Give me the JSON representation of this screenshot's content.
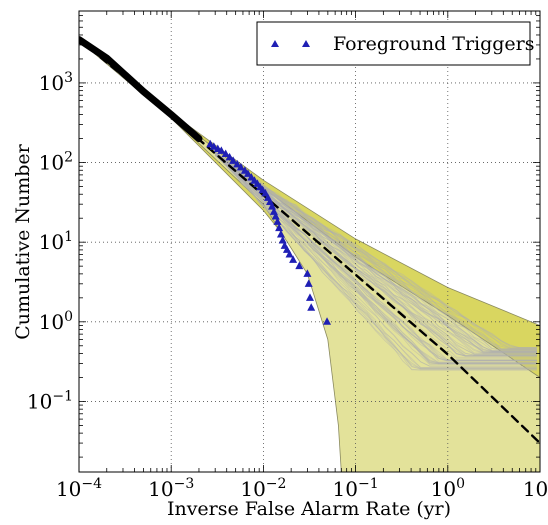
{
  "chart_data": {
    "type": "scatter",
    "xlabel": "Inverse False Alarm Rate (yr)",
    "ylabel": "Cumulative Number",
    "xscale": "log",
    "yscale": "log",
    "xlim": [
      0.0001,
      10
    ],
    "ylim": [
      0.013,
      8000
    ],
    "grid": true,
    "legend_position": "top-right",
    "x_ticks": [
      {
        "value": 0.0001,
        "mantissa": "10",
        "exp": "−4"
      },
      {
        "value": 0.001,
        "mantissa": "10",
        "exp": "−3"
      },
      {
        "value": 0.01,
        "mantissa": "10",
        "exp": "−2"
      },
      {
        "value": 0.1,
        "mantissa": "10",
        "exp": "−1"
      },
      {
        "value": 1,
        "mantissa": "10",
        "exp": "0"
      },
      {
        "value": 10,
        "mantissa": "10",
        "exp": "1"
      }
    ],
    "y_ticks": [
      {
        "value": 0.1,
        "mantissa": "10",
        "exp": "−1"
      },
      {
        "value": 1,
        "mantissa": "10",
        "exp": "0"
      },
      {
        "value": 10,
        "mantissa": "10",
        "exp": "1"
      },
      {
        "value": 100,
        "mantissa": "10",
        "exp": "2"
      },
      {
        "value": 1000,
        "mantissa": "10",
        "exp": "3"
      }
    ],
    "series": [
      {
        "name": "Foreground Triggers",
        "marker": "triangle",
        "color": "#1f1fb4",
        "points": [
          [
            0.00265,
            170
          ],
          [
            0.0029,
            158
          ],
          [
            0.0032,
            148
          ],
          [
            0.0035,
            140
          ],
          [
            0.0039,
            128
          ],
          [
            0.0043,
            116
          ],
          [
            0.0047,
            105
          ],
          [
            0.0052,
            95
          ],
          [
            0.0057,
            87
          ],
          [
            0.0063,
            79
          ],
          [
            0.0068,
            72
          ],
          [
            0.0074,
            65
          ],
          [
            0.008,
            59
          ],
          [
            0.0086,
            54
          ],
          [
            0.0092,
            49
          ],
          [
            0.0098,
            45
          ],
          [
            0.0105,
            41
          ],
          [
            0.0112,
            36
          ],
          [
            0.0118,
            32
          ],
          [
            0.0124,
            28
          ],
          [
            0.013,
            24
          ],
          [
            0.0136,
            21
          ],
          [
            0.0142,
            18
          ],
          [
            0.0148,
            15
          ],
          [
            0.0155,
            12.5
          ],
          [
            0.0162,
            10.5
          ],
          [
            0.017,
            9
          ],
          [
            0.018,
            8
          ],
          [
            0.0192,
            7
          ],
          [
            0.021,
            6
          ],
          [
            0.0245,
            5
          ],
          [
            0.03,
            4
          ],
          [
            0.031,
            3
          ],
          [
            0.032,
            2
          ],
          [
            0.033,
            1.5
          ],
          [
            0.049,
            1
          ]
        ]
      },
      {
        "name": "",
        "color": "#000000",
        "line_style": "solid",
        "points": [
          [
            0.0001,
            3500
          ],
          [
            0.0002,
            2050
          ],
          [
            0.0005,
            780
          ],
          [
            0.001,
            400
          ],
          [
            0.002,
            200
          ]
        ]
      },
      {
        "name": "",
        "color": "#000000",
        "line_style": "dashed",
        "points": [
          [
            0.0001,
            3500
          ],
          [
            0.001,
            390
          ],
          [
            0.01,
            39
          ],
          [
            0.1,
            3.9
          ],
          [
            1,
            0.39
          ],
          [
            10,
            0.03
          ]
        ]
      }
    ],
    "bands": [
      {
        "color": "#d4d04a",
        "opacity": 0.88,
        "upper": [
          [
            0.0001,
            3600
          ],
          [
            0.001,
            420
          ],
          [
            0.01,
            60
          ],
          [
            0.1,
            11
          ],
          [
            1,
            2.7
          ],
          [
            10,
            0.9
          ]
        ],
        "lower": [
          [
            0.0001,
            3400
          ],
          [
            0.001,
            360
          ],
          [
            0.01,
            25
          ],
          [
            0.05,
            2.5
          ],
          [
            0.1,
            1.2
          ],
          [
            0.2,
            0.18
          ],
          [
            0.3,
            0.013
          ],
          [
            10,
            0.013
          ]
        ]
      },
      {
        "color": "#e3e29a",
        "opacity": 1,
        "upper": [
          [
            0.0001,
            3560
          ],
          [
            0.001,
            410
          ],
          [
            0.01,
            48
          ],
          [
            0.1,
            6.5
          ],
          [
            1,
            1.2
          ],
          [
            10,
            0.2
          ]
        ],
        "lower": [
          [
            0.0001,
            3440
          ],
          [
            0.001,
            370
          ],
          [
            0.01,
            30
          ],
          [
            0.03,
            4
          ],
          [
            0.05,
            0.6
          ],
          [
            0.065,
            0.05
          ],
          [
            0.07,
            0.013
          ],
          [
            10,
            0.013
          ]
        ]
      }
    ]
  },
  "legend": {
    "label": "Foreground Triggers"
  },
  "colors": {
    "band_outer": "#d4d04a",
    "band_inner": "#e3e29a",
    "marker": "#1f1fb4",
    "background_curves": "#b0b0b0"
  }
}
